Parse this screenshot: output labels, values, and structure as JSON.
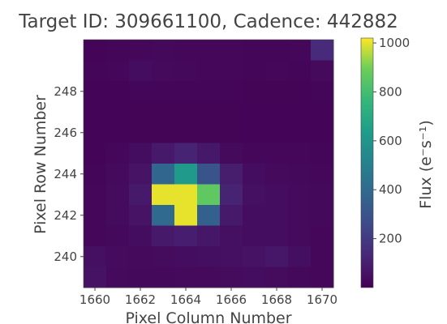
{
  "chart_data": {
    "type": "heatmap",
    "title": "Target ID: 309661100, Cadence: 442882",
    "xlabel": "Pixel Column Number",
    "ylabel": "Pixel Row Number",
    "colorbar_label": "Flux (e⁻s⁻¹)",
    "colormap": "viridis",
    "x_start": 1660,
    "y_start": 239,
    "x_ticks": [
      1660,
      1662,
      1664,
      1666,
      1668,
      1670
    ],
    "y_ticks": [
      240,
      242,
      244,
      246,
      248
    ],
    "colorbar_ticks": [
      200,
      400,
      600,
      800,
      1000
    ],
    "vmin": 0,
    "vmax": 1020,
    "grid": false,
    "legend": "none",
    "rows_top_to_bottom": [
      [
        10,
        15,
        20,
        25,
        20,
        20,
        18,
        15,
        15,
        20,
        140
      ],
      [
        15,
        20,
        40,
        30,
        25,
        20,
        20,
        15,
        20,
        15,
        30
      ],
      [
        10,
        12,
        15,
        15,
        15,
        15,
        15,
        12,
        12,
        12,
        15
      ],
      [
        10,
        10,
        12,
        12,
        12,
        12,
        12,
        10,
        10,
        10,
        10
      ],
      [
        10,
        10,
        12,
        12,
        12,
        12,
        12,
        10,
        10,
        10,
        10
      ],
      [
        10,
        20,
        40,
        80,
        110,
        75,
        30,
        20,
        20,
        20,
        15
      ],
      [
        15,
        30,
        60,
        380,
        620,
        300,
        90,
        40,
        30,
        25,
        20
      ],
      [
        20,
        35,
        80,
        1000,
        1000,
        860,
        110,
        50,
        40,
        30,
        25
      ],
      [
        20,
        35,
        60,
        390,
        1000,
        350,
        80,
        40,
        40,
        30,
        25
      ],
      [
        20,
        25,
        40,
        80,
        95,
        70,
        50,
        40,
        40,
        30,
        20
      ],
      [
        50,
        35,
        30,
        35,
        40,
        45,
        50,
        55,
        70,
        45,
        20
      ],
      [
        55,
        30,
        25,
        25,
        30,
        30,
        35,
        40,
        35,
        25,
        20
      ]
    ]
  }
}
